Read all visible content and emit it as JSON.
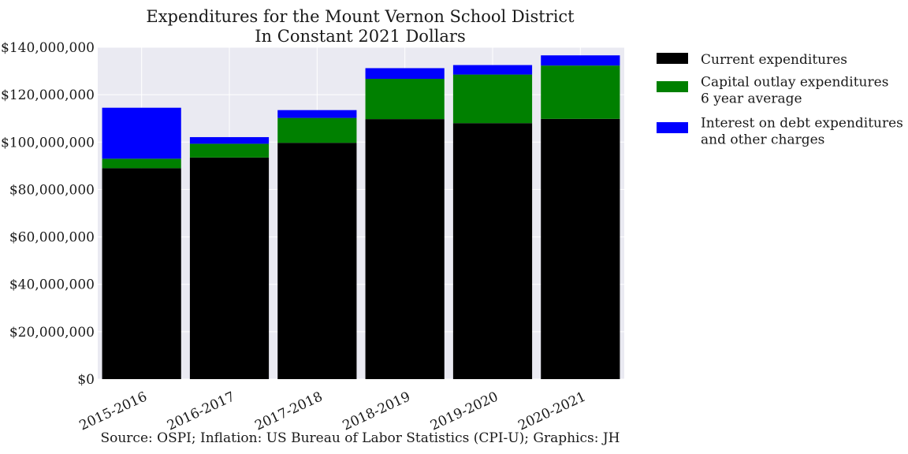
{
  "chart_data": {
    "type": "bar",
    "stacked": true,
    "title": [
      "Expenditures for the Mount Vernon School District",
      "In Constant 2021 Dollars"
    ],
    "categories": [
      "2015-2016",
      "2016-2017",
      "2017-2018",
      "2018-2019",
      "2019-2020",
      "2020-2021"
    ],
    "series": [
      {
        "name": "Current expenditures",
        "color": "#000000",
        "values": [
          89000000,
          93500000,
          99700000,
          109700000,
          108000000,
          109800000
        ]
      },
      {
        "name": "Capital outlay expenditures\n6 year average",
        "color": "#008000",
        "values": [
          4000000,
          5800000,
          10500000,
          17000000,
          20500000,
          22500000
        ]
      },
      {
        "name": "Interest on debt expenditures\nand other charges",
        "color": "#0000ff",
        "values": [
          21500000,
          2800000,
          3300000,
          4500000,
          4000000,
          4300000
        ]
      }
    ],
    "ylim": [
      0,
      140000000
    ],
    "yticks": [
      0,
      20000000,
      40000000,
      60000000,
      80000000,
      100000000,
      120000000,
      140000000
    ],
    "ytick_labels": [
      "$0",
      "$20,000,000",
      "$40,000,000",
      "$60,000,000",
      "$80,000,000",
      "$100,000,000",
      "$120,000,000",
      "$140,000,000"
    ],
    "xlabel": "",
    "ylabel": "",
    "grid": true,
    "legend_position": "outside-right-top",
    "source": "Source: OSPI; Inflation: US Bureau of Labor Statistics (CPI-U); Graphics: JH"
  }
}
